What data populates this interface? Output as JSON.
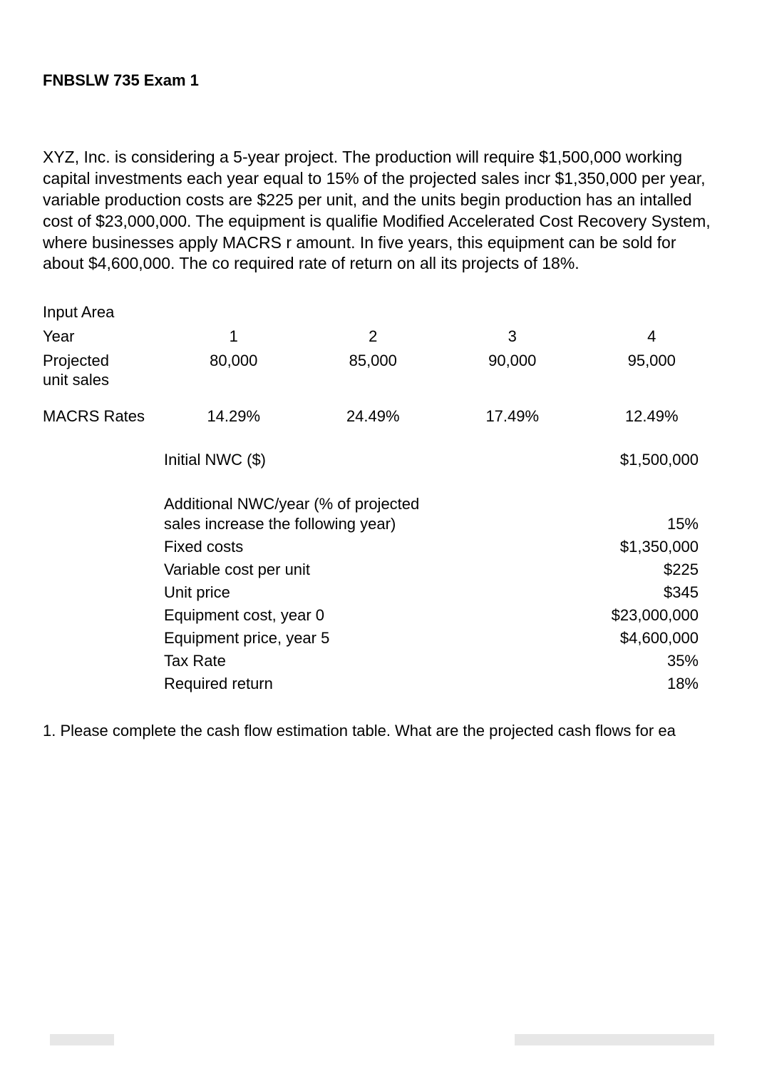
{
  "title": "FNBSLW 735 Exam 1",
  "intro": "XYZ, Inc. is considering a 5-year project. The production will require $1,500,000 working capital investments each year equal to 15% of the projected sales incr $1,350,000 per year, variable production costs are $225 per unit, and the units begin production has an intalled cost of $23,000,000. The equipment is qualifie Modified Accelerated Cost Recovery System, where businesses apply MACRS r amount. In five years, this equipment can be sold for about $4,600,000. The co required rate of return on all its projects of 18%.",
  "table": {
    "input_area_label": "Input Area",
    "year_label": "Year",
    "years": [
      "1",
      "2",
      "3",
      "4"
    ],
    "projected_label_line1": "Projected",
    "projected_label_line2": "unit sales",
    "projected_values": [
      "80,000",
      "85,000",
      "90,000",
      "95,000"
    ],
    "macrs_label": "MACRS Rates",
    "macrs_values": [
      "14.29%",
      "24.49%",
      "17.49%",
      "12.49%"
    ]
  },
  "params": {
    "initial_nwc_label": "Initial NWC ($)",
    "initial_nwc_value": "$1,500,000",
    "addl_nwc_label_line1": "Additional NWC/year (% of projected",
    "addl_nwc_label_line2": "sales increase the following year)",
    "addl_nwc_value": "15%",
    "fixed_costs_label": "Fixed costs",
    "fixed_costs_value": "$1,350,000",
    "var_cost_label": "Variable cost per unit",
    "var_cost_value": "$225",
    "unit_price_label": "Unit price",
    "unit_price_value": "$345",
    "equip_cost_label": "Equipment cost, year 0",
    "equip_cost_value": "$23,000,000",
    "equip_price_label": "Equipment price, year 5",
    "equip_price_value": "$4,600,000",
    "tax_rate_label": "Tax Rate",
    "tax_rate_value": "35%",
    "req_return_label": "Required return",
    "req_return_value": "18%"
  },
  "question": "1. Please complete the cash flow estimation table. What are the projected cash flows for ea",
  "colors": {
    "background": "#ffffff",
    "text": "#000000",
    "bar": "#e7e7e7"
  },
  "typography": {
    "title_fontsize": 22,
    "body_fontsize": 22,
    "intro_fontsize": 23,
    "font_family": "Arial"
  }
}
